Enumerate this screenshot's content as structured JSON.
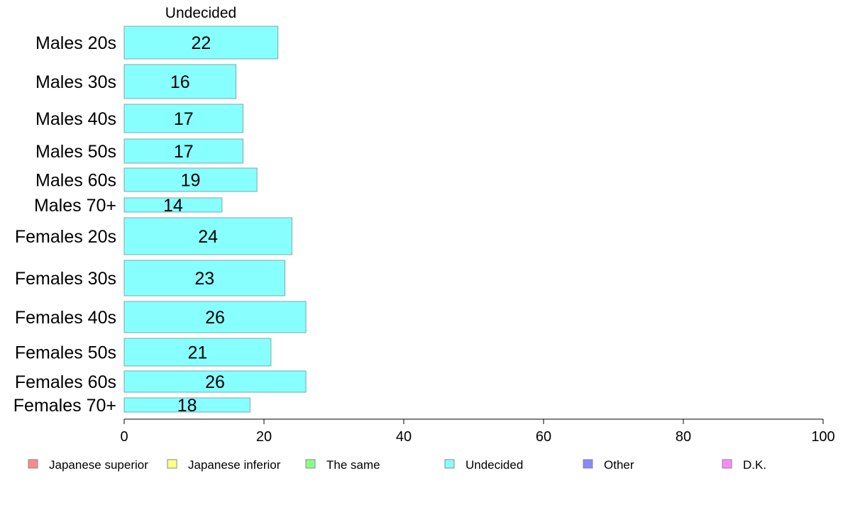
{
  "chart_data": {
    "type": "bar",
    "orientation": "horizontal",
    "title": "Undecided",
    "categories": [
      "Males 20s",
      "Males 30s",
      "Males 40s",
      "Males 50s",
      "Males 60s",
      "Males 70+",
      "Females 20s",
      "Females 30s",
      "Females 40s",
      "Females 50s",
      "Females 60s",
      "Females 70+"
    ],
    "series": [
      {
        "name": "Undecided",
        "values": [
          22,
          16,
          17,
          17,
          19,
          14,
          24,
          23,
          26,
          21,
          26,
          18
        ]
      }
    ],
    "xlim": [
      0,
      100
    ],
    "xticks": [
      0,
      20,
      40,
      60,
      80,
      100
    ],
    "grid": false,
    "bar_color": "#88ffff",
    "bar_edge_color": "#7aa8a8",
    "legend_position": "bottom",
    "legend": [
      {
        "label": "Japanese superior",
        "color": "#ff8888"
      },
      {
        "label": "Japanese inferior",
        "color": "#ffff88"
      },
      {
        "label": "The same",
        "color": "#88ff88"
      },
      {
        "label": "Undecided",
        "color": "#88ffff"
      },
      {
        "label": "Other",
        "color": "#8888ff"
      },
      {
        "label": "D.K.",
        "color": "#ff88ff"
      }
    ]
  }
}
